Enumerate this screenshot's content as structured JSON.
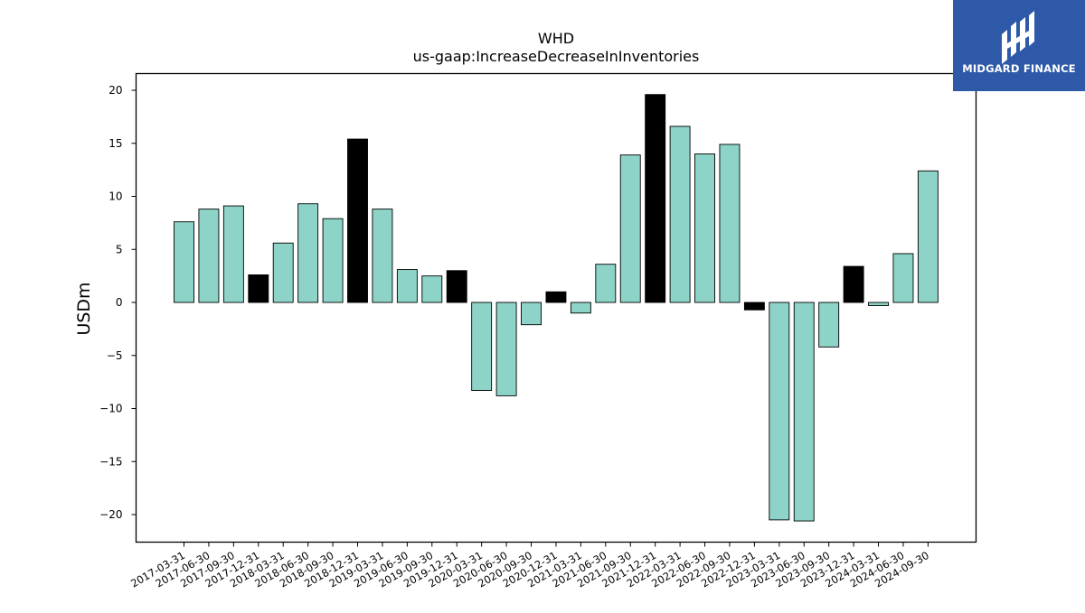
{
  "brand": {
    "name": "MIDGARD FINANCE",
    "bg_color": "#2e59a8",
    "icon": "midgard-logo-icon"
  },
  "colors": {
    "positive_bar": "#8dd3c7",
    "highlight_bar": "#000000",
    "edge": "#000000"
  },
  "chart_data": {
    "type": "bar",
    "title": "WHD",
    "subtitle": "us-gaap:IncreaseDecreaseInInventories",
    "xlabel": "",
    "ylabel": "USDm",
    "ylim": [
      -22.5,
      21.7
    ],
    "yticks": [
      20,
      15,
      10,
      5,
      0,
      -5,
      -10,
      -15,
      -20
    ],
    "ytick_labels": [
      "20",
      "15",
      "10",
      "5",
      "0",
      "−5",
      "−10",
      "−15",
      "−20"
    ],
    "grid": false,
    "categories": [
      "2017-03-31",
      "2017-06-30",
      "2017-09-30",
      "2017-12-31",
      "2018-03-31",
      "2018-06-30",
      "2018-09-30",
      "2018-12-31",
      "2019-03-31",
      "2019-06-30",
      "2019-09-30",
      "2019-12-31",
      "2020-03-31",
      "2020-06-30",
      "2020-09-30",
      "2020-12-31",
      "2021-03-31",
      "2021-06-30",
      "2021-09-30",
      "2021-12-31",
      "2022-03-31",
      "2022-06-30",
      "2022-09-30",
      "2022-12-31",
      "2023-03-31",
      "2023-06-30",
      "2023-09-30",
      "2023-12-31",
      "2024-03-31",
      "2024-06-30",
      "2024-09-30"
    ],
    "values": [
      7.6,
      8.8,
      9.1,
      2.6,
      5.6,
      9.3,
      7.9,
      15.4,
      8.8,
      3.1,
      2.5,
      3.0,
      -8.3,
      -8.8,
      -2.1,
      1.0,
      -1.0,
      3.6,
      13.9,
      19.6,
      16.6,
      14.0,
      14.9,
      -0.7,
      -20.5,
      -20.6,
      -4.2,
      3.4,
      -0.3,
      4.6,
      12.4
    ],
    "highlighted": [
      false,
      false,
      false,
      true,
      false,
      false,
      false,
      true,
      false,
      false,
      false,
      true,
      false,
      false,
      false,
      true,
      false,
      false,
      false,
      true,
      false,
      false,
      false,
      true,
      false,
      false,
      false,
      true,
      false,
      false,
      false
    ]
  }
}
